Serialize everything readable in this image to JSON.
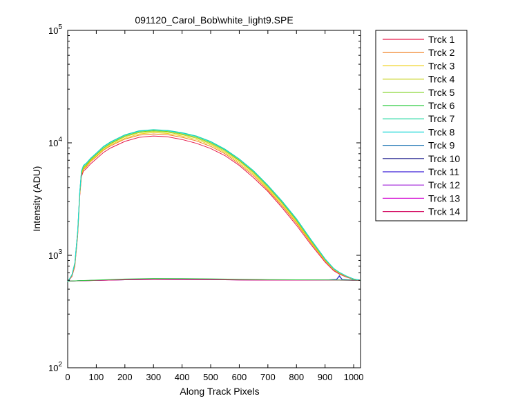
{
  "chart_data": {
    "type": "line",
    "title": "091120_Carol_Bob\\white_light9.SPE",
    "xlabel": "Along Track Pixels",
    "ylabel": "Intensity (ADU)",
    "xlim": [
      0,
      1024
    ],
    "ylim": [
      100,
      100000
    ],
    "yscale": "log",
    "xticks": [
      0,
      100,
      200,
      300,
      400,
      500,
      600,
      700,
      800,
      900,
      1000
    ],
    "yticks": [
      {
        "value": 100,
        "base": "10",
        "exp": "2"
      },
      {
        "value": 1000,
        "base": "10",
        "exp": "3"
      },
      {
        "value": 10000,
        "base": "10",
        "exp": "4"
      },
      {
        "value": 100000,
        "base": "10",
        "exp": "5"
      }
    ],
    "grid": false,
    "legend_position": "outside-right",
    "baseline_tracks": [
      {
        "name": "Trck 1",
        "color": "#e6194b",
        "x": [
          0,
          50,
          100,
          200,
          300,
          400,
          500,
          600,
          700,
          800,
          900,
          950,
          1000,
          1024
        ],
        "y": [
          590,
          595,
          600,
          610,
          615,
          612,
          610,
          605,
          603,
          603,
          603,
          603,
          600,
          600
        ]
      },
      {
        "name": "Trck 9",
        "color": "#1f77b4",
        "x": [
          0,
          50,
          100,
          200,
          300,
          400,
          500,
          600,
          700,
          800,
          900,
          940,
          950,
          960,
          1000,
          1024
        ],
        "y": [
          590,
          595,
          600,
          612,
          618,
          615,
          612,
          608,
          605,
          604,
          604,
          610,
          660,
          610,
          603,
          600
        ]
      },
      {
        "name": "Trck 10",
        "color": "#1a1a8c",
        "x": [
          0,
          50,
          100,
          200,
          300,
          400,
          500,
          600,
          700,
          800,
          900,
          1000,
          1024
        ],
        "y": [
          590,
          595,
          598,
          606,
          612,
          610,
          608,
          605,
          602,
          602,
          602,
          600,
          600
        ]
      },
      {
        "name": "Trck 11",
        "color": "#3a1fd6",
        "x": [
          0,
          50,
          100,
          200,
          300,
          400,
          500,
          600,
          700,
          800,
          900,
          940,
          950,
          960,
          1000,
          1024
        ],
        "y": [
          590,
          595,
          600,
          610,
          616,
          613,
          610,
          606,
          604,
          604,
          603,
          610,
          650,
          608,
          602,
          600
        ]
      },
      {
        "name": "Trck 12",
        "color": "#9b19d6",
        "x": [
          0,
          50,
          100,
          200,
          300,
          400,
          500,
          600,
          700,
          800,
          900,
          1000,
          1024
        ],
        "y": [
          590,
          595,
          600,
          609,
          615,
          612,
          610,
          606,
          604,
          603,
          603,
          600,
          600
        ]
      },
      {
        "name": "Trck 13",
        "color": "#d61ad6",
        "x": [
          0,
          50,
          100,
          200,
          300,
          400,
          500,
          600,
          700,
          800,
          900,
          1000,
          1024
        ],
        "y": [
          590,
          594,
          598,
          606,
          610,
          609,
          607,
          604,
          602,
          602,
          602,
          600,
          600
        ]
      },
      {
        "name": "Trck 14",
        "color": "#d6196b",
        "x": [
          0,
          50,
          100,
          200,
          300,
          400,
          500,
          600,
          700,
          800,
          900,
          1000,
          1024
        ],
        "y": [
          590,
          594,
          598,
          606,
          610,
          609,
          607,
          604,
          602,
          602,
          602,
          600,
          600
        ]
      },
      {
        "name": "Trck 6",
        "color": "#2ecc40",
        "x": [
          0,
          50,
          100,
          200,
          300,
          400,
          500,
          600,
          700,
          800,
          900,
          1000,
          1024
        ],
        "y": [
          590,
          596,
          602,
          615,
          622,
          620,
          618,
          612,
          608,
          606,
          605,
          602,
          600
        ]
      }
    ],
    "signal_tracks": [
      {
        "name": "Trck 1",
        "color": "#e6194b",
        "x": [
          0,
          15,
          25,
          35,
          42,
          48,
          55,
          65,
          80,
          100,
          125,
          150,
          200,
          250,
          300,
          350,
          400,
          450,
          500,
          550,
          600,
          650,
          700,
          750,
          800,
          850,
          900,
          930,
          950,
          975,
          1000,
          1024
        ],
        "y": [
          580,
          650,
          800,
          1500,
          3300,
          5000,
          5600,
          5900,
          6500,
          7200,
          8200,
          9000,
          10300,
          11200,
          11500,
          11300,
          10700,
          9900,
          8900,
          7700,
          6300,
          4900,
          3700,
          2650,
          1850,
          1250,
          870,
          730,
          680,
          640,
          610,
          600
        ]
      },
      {
        "name": "Trck 2",
        "color": "#f07d1a",
        "x": [
          0,
          15,
          25,
          35,
          42,
          48,
          55,
          65,
          80,
          100,
          125,
          150,
          200,
          250,
          300,
          350,
          400,
          450,
          500,
          550,
          600,
          650,
          700,
          750,
          800,
          850,
          900,
          930,
          950,
          975,
          1000,
          1024
        ],
        "y": [
          580,
          660,
          820,
          1550,
          3400,
          5200,
          5800,
          6100,
          6800,
          7500,
          8600,
          9400,
          10800,
          11700,
          12000,
          11800,
          11200,
          10400,
          9300,
          8000,
          6500,
          5100,
          3800,
          2750,
          1920,
          1290,
          890,
          745,
          690,
          645,
          612,
          600
        ]
      },
      {
        "name": "Trck 3",
        "color": "#f0d21a",
        "x": [
          0,
          15,
          25,
          35,
          42,
          48,
          55,
          65,
          80,
          100,
          125,
          150,
          200,
          250,
          300,
          350,
          400,
          450,
          500,
          550,
          600,
          650,
          700,
          750,
          800,
          850,
          900,
          930,
          950,
          975,
          1000,
          1024
        ],
        "y": [
          580,
          665,
          830,
          1580,
          3450,
          5300,
          5900,
          6200,
          6900,
          7600,
          8700,
          9600,
          11000,
          12000,
          12300,
          12100,
          11500,
          10700,
          9600,
          8200,
          6700,
          5250,
          3900,
          2820,
          1970,
          1310,
          900,
          750,
          695,
          648,
          613,
          600
        ]
      },
      {
        "name": "Trck 4",
        "color": "#c8d21a",
        "x": [
          0,
          15,
          25,
          35,
          42,
          48,
          55,
          65,
          80,
          100,
          125,
          150,
          200,
          250,
          300,
          350,
          400,
          450,
          500,
          550,
          600,
          650,
          700,
          750,
          800,
          850,
          900,
          930,
          950,
          975,
          1000,
          1024
        ],
        "y": [
          580,
          668,
          840,
          1600,
          3500,
          5400,
          6000,
          6300,
          7000,
          7800,
          8900,
          9800,
          11300,
          12300,
          12600,
          12400,
          11800,
          11000,
          9800,
          8400,
          6900,
          5400,
          4000,
          2900,
          2020,
          1340,
          910,
          755,
          700,
          650,
          614,
          600
        ]
      },
      {
        "name": "Trck 5",
        "color": "#7ad21a",
        "x": [
          0,
          15,
          25,
          35,
          42,
          48,
          55,
          65,
          80,
          100,
          125,
          150,
          200,
          250,
          300,
          350,
          400,
          450,
          500,
          550,
          600,
          650,
          700,
          750,
          800,
          850,
          900,
          930,
          950,
          975,
          1000,
          1024
        ],
        "y": [
          580,
          670,
          850,
          1620,
          3550,
          5500,
          6100,
          6400,
          7100,
          7900,
          9000,
          9900,
          11500,
          12500,
          12800,
          12600,
          12000,
          11200,
          10000,
          8600,
          7000,
          5500,
          4100,
          2950,
          2060,
          1360,
          920,
          760,
          702,
          652,
          615,
          600
        ]
      },
      {
        "name": "Trck 7",
        "color": "#19d69b",
        "x": [
          0,
          15,
          25,
          35,
          42,
          48,
          55,
          65,
          80,
          100,
          125,
          150,
          200,
          250,
          300,
          350,
          400,
          450,
          500,
          550,
          600,
          650,
          700,
          750,
          800,
          850,
          900,
          930,
          950,
          975,
          1000,
          1024
        ],
        "y": [
          580,
          672,
          860,
          1650,
          3600,
          5600,
          6300,
          6600,
          7300,
          8100,
          9300,
          10200,
          11800,
          12800,
          13100,
          12900,
          12300,
          11500,
          10300,
          8800,
          7200,
          5650,
          4200,
          3030,
          2110,
          1390,
          930,
          765,
          705,
          654,
          616,
          600
        ]
      },
      {
        "name": "Trck 8",
        "color": "#1ad6d6",
        "x": [
          0,
          15,
          25,
          35,
          42,
          48,
          55,
          65,
          80,
          100,
          125,
          150,
          200,
          250,
          300,
          350,
          400,
          450,
          500,
          550,
          600,
          650,
          700,
          750,
          800,
          850,
          900,
          930,
          950,
          975,
          1000,
          1024
        ],
        "y": [
          580,
          672,
          860,
          1650,
          3600,
          5600,
          6250,
          6550,
          7250,
          8050,
          9200,
          10100,
          11700,
          12700,
          13000,
          12800,
          12200,
          11400,
          10200,
          8700,
          7150,
          5600,
          4170,
          3000,
          2090,
          1380,
          925,
          763,
          704,
          653,
          615,
          600
        ]
      }
    ],
    "legend": [
      {
        "name": "Trck 1",
        "color": "#e6194b"
      },
      {
        "name": "Trck 2",
        "color": "#f07d1a"
      },
      {
        "name": "Trck 3",
        "color": "#f0d21a"
      },
      {
        "name": "Trck 4",
        "color": "#c8d21a"
      },
      {
        "name": "Trck 5",
        "color": "#7ad21a"
      },
      {
        "name": "Trck 6",
        "color": "#2ecc40"
      },
      {
        "name": "Trck 7",
        "color": "#19d69b"
      },
      {
        "name": "Trck 8",
        "color": "#1ad6d6"
      },
      {
        "name": "Trck 9",
        "color": "#1f77b4"
      },
      {
        "name": "Trck 10",
        "color": "#1a1a8c"
      },
      {
        "name": "Trck 11",
        "color": "#3a1fd6"
      },
      {
        "name": "Trck 12",
        "color": "#9b19d6"
      },
      {
        "name": "Trck 13",
        "color": "#d61ad6"
      },
      {
        "name": "Trck 14",
        "color": "#d6196b"
      }
    ]
  }
}
